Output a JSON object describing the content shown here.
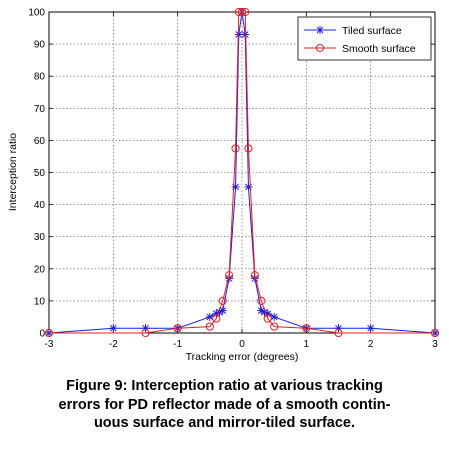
{
  "chart_data": {
    "type": "line",
    "xlabel": "Tracking error (degrees)",
    "ylabel": "Interception ratio",
    "xlim": [
      -3,
      3
    ],
    "ylim": [
      0,
      100
    ],
    "xticks": [
      -3,
      -2,
      -1,
      0,
      1,
      2,
      3
    ],
    "yticks": [
      0,
      10,
      20,
      30,
      40,
      50,
      60,
      70,
      80,
      90,
      100
    ],
    "grid": true,
    "legend_position": "top-right",
    "series": [
      {
        "name": "Tiled surface",
        "color": "#1f1fd6",
        "marker": "star",
        "x": [
          -3,
          -2,
          -1.5,
          -1,
          -0.5,
          -0.4,
          -0.35,
          -0.3,
          -0.2,
          -0.1,
          -0.05,
          0,
          0.05,
          0.1,
          0.2,
          0.3,
          0.35,
          0.4,
          0.5,
          1,
          1.5,
          2,
          3
        ],
        "y": [
          0,
          1.5,
          1.5,
          1.5,
          5,
          6,
          6.5,
          7,
          17,
          45.5,
          93,
          100,
          93,
          45.5,
          17,
          7,
          6.5,
          6,
          5,
          1.5,
          1.5,
          1.5,
          0
        ]
      },
      {
        "name": "Smooth surface",
        "color": "#e01f1f",
        "marker": "circle",
        "x": [
          -3,
          -1.5,
          -1,
          -0.5,
          -0.4,
          -0.3,
          -0.2,
          -0.1,
          -0.05,
          0,
          0.05,
          0.1,
          0.2,
          0.3,
          0.4,
          0.5,
          1,
          1.5,
          3
        ],
        "y": [
          0,
          0,
          1.5,
          2,
          4.5,
          10,
          18,
          57.5,
          100,
          100,
          100,
          57.5,
          18,
          10,
          4.5,
          2,
          1.5,
          0,
          0
        ]
      }
    ]
  },
  "caption": {
    "line1": "Figure 9: Interception ratio at various tracking",
    "line2": "errors for PD reflector made of a smooth contin-",
    "line3": "uous surface and mirror-tiled surface."
  }
}
